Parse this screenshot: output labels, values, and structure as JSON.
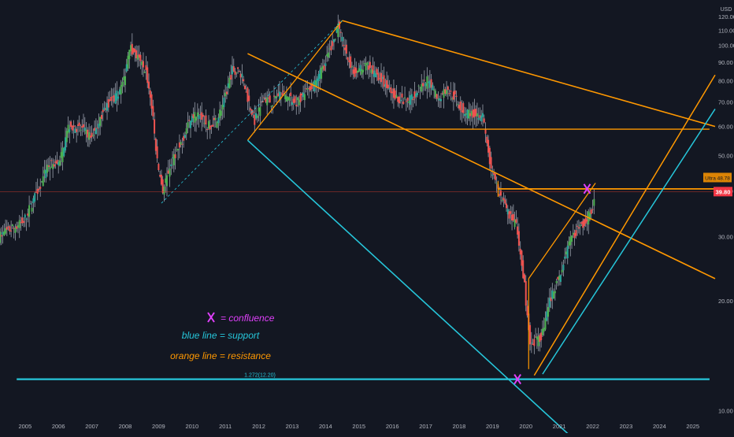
{
  "chart_data": {
    "type": "candlestick",
    "currency": "USD",
    "y_axis": {
      "scale": "log",
      "ylim": [
        9.5,
        128
      ],
      "ticks": [
        10,
        20,
        30,
        40,
        50,
        60,
        70,
        80,
        90,
        100,
        110,
        120
      ],
      "tick_labels": [
        "10.00",
        "20.00",
        "30.00",
        "40.00",
        "50.00",
        "60.00",
        "70.00",
        "80.00",
        "90.00",
        "100.00",
        "110.00",
        "120.00"
      ]
    },
    "x_axis": {
      "xlim": [
        "2004-04",
        "2025-09"
      ],
      "tick_labels": [
        "2005",
        "2006",
        "2007",
        "2008",
        "2009",
        "2010",
        "2011",
        "2012",
        "2013",
        "2014",
        "2015",
        "2016",
        "2017",
        "2018",
        "2019",
        "2020",
        "2021",
        "2022",
        "2023",
        "2024",
        "2025"
      ]
    },
    "price_path": [
      [
        "2004-04",
        30
      ],
      [
        "2005-01",
        33
      ],
      [
        "2005-06",
        40
      ],
      [
        "2005-10",
        47
      ],
      [
        "2006-02",
        48
      ],
      [
        "2006-05",
        60
      ],
      [
        "2006-10",
        59
      ],
      [
        "2007-01",
        56
      ],
      [
        "2007-07",
        69
      ],
      [
        "2007-10",
        72
      ],
      [
        "2008-01",
        80
      ],
      [
        "2008-03",
        100
      ],
      [
        "2008-06",
        92
      ],
      [
        "2008-09",
        85
      ],
      [
        "2008-11",
        68
      ],
      [
        "2009-01",
        48
      ],
      [
        "2009-03",
        40
      ],
      [
        "2009-06",
        48
      ],
      [
        "2009-10",
        55
      ],
      [
        "2010-01",
        63
      ],
      [
        "2010-04",
        66
      ],
      [
        "2010-07",
        60
      ],
      [
        "2010-10",
        62
      ],
      [
        "2011-01",
        70
      ],
      [
        "2011-04",
        86
      ],
      [
        "2011-07",
        84
      ],
      [
        "2011-09",
        74
      ],
      [
        "2011-12",
        62
      ],
      [
        "2012-03",
        72
      ],
      [
        "2012-06",
        70
      ],
      [
        "2012-09",
        74
      ],
      [
        "2013-03",
        70
      ],
      [
        "2013-09",
        78
      ],
      [
        "2014-01",
        88
      ],
      [
        "2014-06",
        112
      ],
      [
        "2014-09",
        94
      ],
      [
        "2014-12",
        84
      ],
      [
        "2015-04",
        88
      ],
      [
        "2015-09",
        82
      ],
      [
        "2016-01",
        74
      ],
      [
        "2016-06",
        70
      ],
      [
        "2016-10",
        74
      ],
      [
        "2017-02",
        80
      ],
      [
        "2017-06",
        72
      ],
      [
        "2017-09",
        76
      ],
      [
        "2017-12",
        72
      ],
      [
        "2018-03",
        66
      ],
      [
        "2018-07",
        65
      ],
      [
        "2018-10",
        64
      ],
      [
        "2019-01",
        45
      ],
      [
        "2019-06",
        36
      ],
      [
        "2019-10",
        32
      ],
      [
        "2020-01",
        22
      ],
      [
        "2020-03",
        15
      ],
      [
        "2020-07",
        16
      ],
      [
        "2020-10",
        20
      ],
      [
        "2021-02",
        24
      ],
      [
        "2021-06",
        30
      ],
      [
        "2021-11",
        33
      ],
      [
        "2022-02",
        37
      ]
    ],
    "highs_lows": {
      "high": 117,
      "low": 12.6
    },
    "last_price": "39.80",
    "side_label": "Ultra 48.78",
    "fib_label": "1.272(12.20)",
    "annotations": [
      {
        "text": "= confluence",
        "color": "#e040fb"
      },
      {
        "text": "blue line = support",
        "color": "#26c6da"
      },
      {
        "text": "orange line = resistance",
        "color": "#ff9800"
      }
    ],
    "colors": {
      "background": "#131722",
      "up": "#26a69a",
      "up_bright": "#4caf50",
      "down": "#ef5350",
      "wick": "#9aa0ac",
      "support": "#26c6da",
      "resistance": "#ff9800",
      "confluence": "#e040fb",
      "axis_text": "#b2b5be",
      "last_price_bg": "#f23645"
    }
  }
}
